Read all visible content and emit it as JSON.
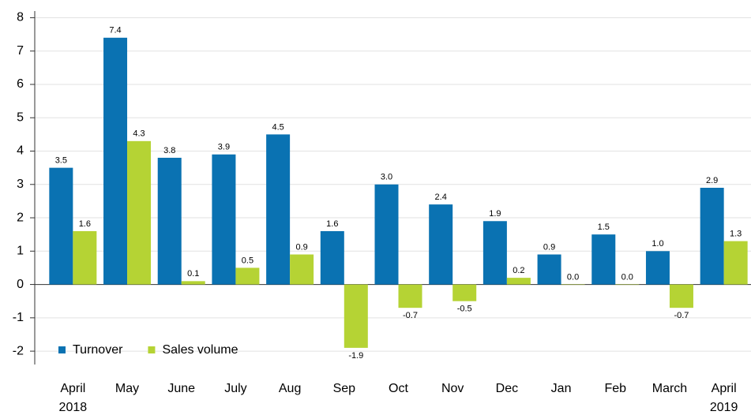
{
  "chart_data": {
    "type": "bar",
    "categories": [
      "April 2018",
      "May",
      "June",
      "July",
      "Aug",
      "Sep",
      "Oct",
      "Nov",
      "Dec",
      "Jan",
      "Feb",
      "March",
      "April 2019"
    ],
    "series": [
      {
        "name": "Turnover",
        "color": "#0a72b2",
        "values": [
          3.5,
          7.4,
          3.8,
          3.9,
          4.5,
          1.6,
          3.0,
          2.4,
          1.9,
          0.9,
          1.5,
          1.0,
          2.9
        ],
        "value_labels": [
          "3.5",
          "7.4",
          "3.8",
          "3.9",
          "4.5",
          "1.6",
          "3.0",
          "2.4",
          "1.9",
          "0.9",
          "1.5",
          "1.0",
          "2.9"
        ]
      },
      {
        "name": "Sales volume",
        "color": "#b5d334",
        "values": [
          1.6,
          4.3,
          0.1,
          0.5,
          0.9,
          -1.9,
          -0.7,
          -0.5,
          0.2,
          0.0,
          0.0,
          -0.7,
          1.3
        ],
        "value_labels": [
          "1.6",
          "4.3",
          "0.1",
          "0.5",
          "0.9",
          "-1.9",
          "-0.7",
          "-0.5",
          "0.2",
          "0.0",
          "0.0",
          "-0.7",
          "1.3"
        ]
      }
    ],
    "ylim": [
      -2.4,
      8.2
    ],
    "yticks": [
      -2,
      -1,
      0,
      1,
      2,
      3,
      4,
      5,
      6,
      7,
      8
    ],
    "grid": true,
    "legend": "bottom-left"
  }
}
